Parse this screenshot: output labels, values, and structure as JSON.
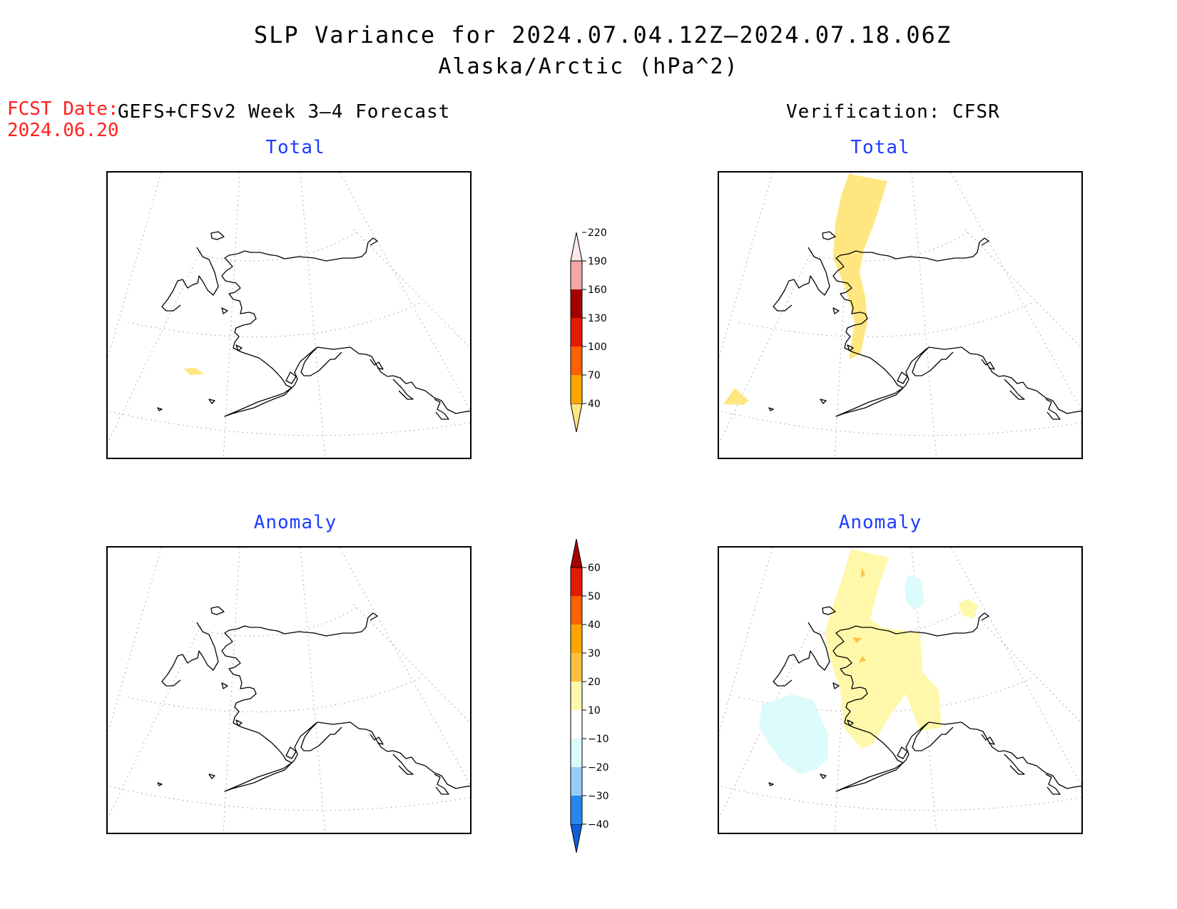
{
  "title": "SLP Variance for 2024.07.04.12Z–2024.07.18.06Z",
  "subtitle": "Alaska/Arctic (hPa^2)",
  "fcst_date_label": "FCST Date:",
  "fcst_date_value": "2024.06.20",
  "forecast_label": "GEFS+CFSv2 Week 3–4 Forecast",
  "verification_label": "Verification: CFSR",
  "panels": {
    "fcst_total": {
      "label": "Total"
    },
    "fcst_anomaly": {
      "label": "Anomaly"
    },
    "ver_total": {
      "label": "Total"
    },
    "ver_anomaly": {
      "label": "Anomaly"
    }
  },
  "total_colorbar": {
    "ticks": [
      "40",
      "70",
      "100",
      "130",
      "160",
      "190",
      "220"
    ],
    "colors": [
      "#ffe680",
      "#ffa500",
      "#ff6100",
      "#e31a00",
      "#a50000",
      "#f4a6a6",
      "#fde8e8"
    ]
  },
  "anomaly_colorbar": {
    "ticks": [
      "−40",
      "−30",
      "−20",
      "−10",
      "10",
      "20",
      "30",
      "40",
      "50",
      "60"
    ],
    "colors": [
      "#0f5fd7",
      "#2887ee",
      "#96cdf7",
      "#dcfcfc",
      "#ffffff",
      "#fff8aa",
      "#ffc040",
      "#ffa500",
      "#ff6100",
      "#e31a00",
      "#a50000"
    ]
  },
  "shading_colors": {
    "total_40_70": "#ffe680",
    "anom_10_20": "#fff8aa",
    "anom_20_30": "#ffc040",
    "anom_neg10_neg20": "#dcfcfc"
  },
  "map_extent": "Alaska / Arctic polar stereographic"
}
